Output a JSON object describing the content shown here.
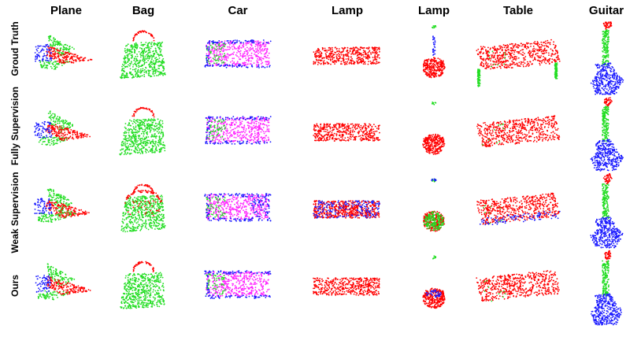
{
  "columns": [
    "Plane",
    "Bag",
    "Car",
    "Lamp",
    "Lamp",
    "Table",
    "Guitar"
  ],
  "rows": [
    "Groud Truth",
    "Fully Supervision",
    "Weak Supervision",
    "Ours"
  ],
  "part_colors": {
    "red": "#ff0000",
    "green": "#22dd22",
    "blue": "#1a1aff",
    "magenta": "#ff22ff"
  },
  "cells_note_icons": [
    "point-cloud"
  ]
}
